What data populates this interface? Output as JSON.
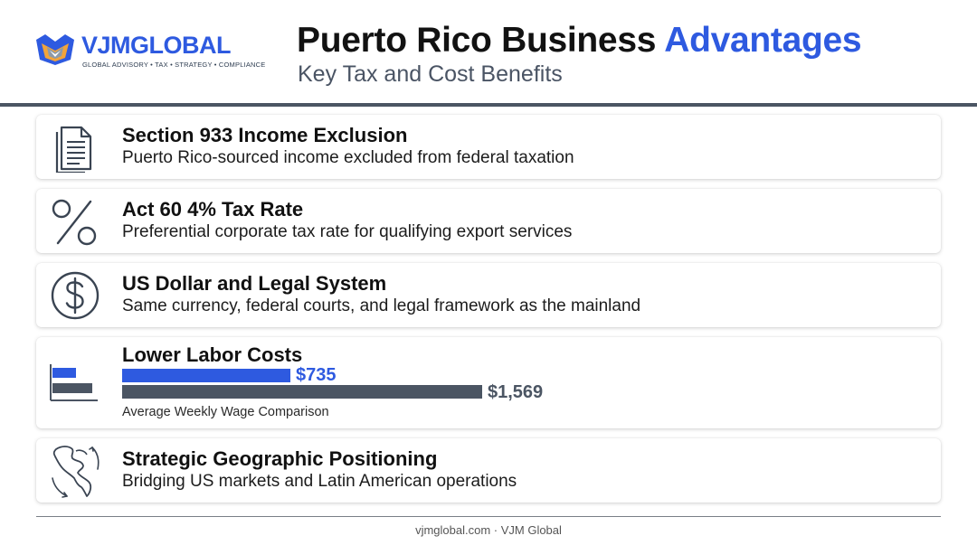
{
  "logo": {
    "brand_vjm": "VJM",
    "brand_global": "GLOBAL",
    "tagline": "GLOBAL ADVISORY • TAX • STRATEGY • COMPLIANCE"
  },
  "header": {
    "title_main": "Puerto Rico Business ",
    "title_accent": "Advantages",
    "subtitle": "Key Tax and Cost Benefits"
  },
  "colors": {
    "accent": "#2e5ae0",
    "slate": "#4b5563"
  },
  "cards": [
    {
      "icon": "document-icon",
      "title": "Section 933 Income Exclusion",
      "description": "Puerto Rico-sourced income excluded from federal taxation"
    },
    {
      "icon": "percent-icon",
      "title": "Act 60 4% Tax Rate",
      "description": "Preferential corporate tax rate for qualifying export services"
    },
    {
      "icon": "dollar-icon",
      "title": "US Dollar and Legal System",
      "description": "Same currency, federal courts, and legal framework as the mainland"
    },
    {
      "icon": "bar-chart-icon",
      "title": "Lower Labor Costs"
    },
    {
      "icon": "globe-americas-icon",
      "title": "Strategic Geographic Positioning",
      "description": "Bridging US markets and Latin American operations"
    }
  ],
  "chart_data": {
    "type": "bar",
    "orientation": "horizontal",
    "categories": [
      "",
      ""
    ],
    "values": [
      735,
      1569
    ],
    "value_labels": [
      "$735",
      "$1,569"
    ],
    "colors": [
      "#2e5ae0",
      "#4b5563"
    ],
    "xlabel": "Average Weekly Wage Comparison"
  },
  "footer": {
    "text": "vjmglobal.com · VJM Global"
  }
}
